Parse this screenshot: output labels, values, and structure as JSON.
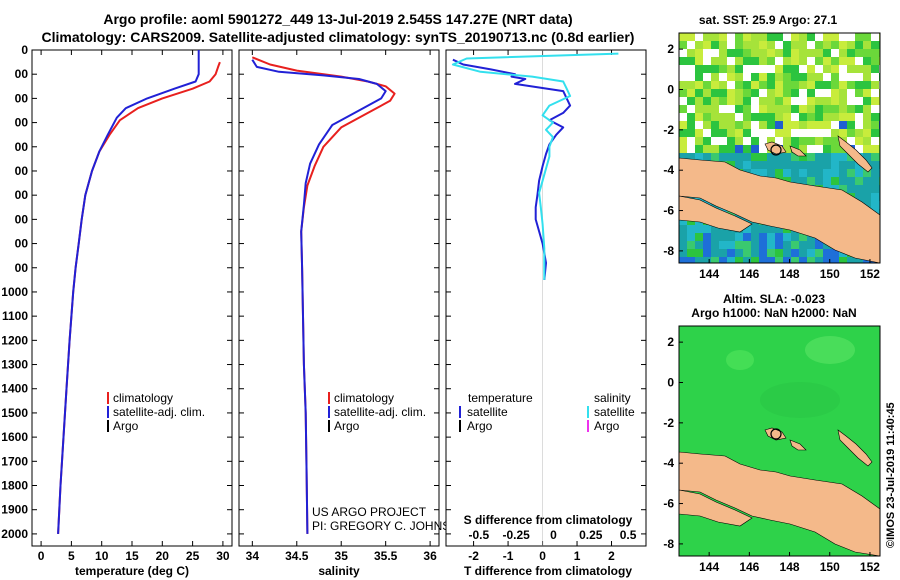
{
  "header": {
    "line1": "Argo profile: aoml 5901272_449 13-Jul-2019 2.545S 147.27E (NRT data)",
    "line2": "Climatology: CARS2009. Satellite-adjusted climatology: synTS_20190713.nc (0.8d earlier)"
  },
  "colors": {
    "climatology": "#e8201e",
    "satellite": "#2121d6",
    "argo": "#000000",
    "sat_salinity": "#33e0ee",
    "argo_salinity": "#ee33ee",
    "land": "#f4b98a",
    "ocean_green": "#2dc83a"
  },
  "chart_data": [
    {
      "type": "line",
      "title": "",
      "xlabel": "temperature (deg C)",
      "ylabel": "",
      "xlim": [
        -1.5,
        31.5
      ],
      "ylim": [
        2050,
        0
      ],
      "y_inverted": true,
      "xticks": [
        0,
        5,
        10,
        15,
        20,
        25,
        30
      ],
      "xticklabels": [
        "0",
        "5",
        "10",
        "15",
        "20",
        "25",
        "30"
      ],
      "depth_ticks": [
        0,
        100,
        200,
        300,
        400,
        500,
        600,
        700,
        800,
        900,
        1000,
        1100,
        1200,
        1300,
        1400,
        1500,
        1600,
        1700,
        1800,
        1900,
        2000
      ],
      "depth_ticklabels": [
        "0",
        "00",
        "00",
        "00",
        "00",
        "00",
        "00",
        "00",
        "00",
        "00",
        "1000",
        "1100",
        "1200",
        "1300",
        "1400",
        "1500",
        "1600",
        "1700",
        "1800",
        "1900",
        "2000"
      ],
      "legend": [
        "climatology",
        "satellite-adj. clim.",
        "Argo"
      ],
      "series": [
        {
          "name": "climatology",
          "color": "#e8201e",
          "x": [
            29.5,
            29.2,
            28.8,
            27.8,
            25.0,
            20.0,
            16.0,
            13.0,
            11.3,
            9.6,
            8.4,
            7.3,
            6.7,
            6.2,
            5.7,
            5.3,
            4.7,
            4.2,
            3.7,
            3.2,
            2.8
          ],
          "y": [
            50,
            70,
            100,
            130,
            160,
            200,
            240,
            290,
            350,
            420,
            500,
            600,
            700,
            800,
            900,
            1000,
            1200,
            1400,
            1600,
            1800,
            2000
          ]
        },
        {
          "name": "satellite-adj. clim.",
          "color": "#2121d6",
          "x": [
            26.0,
            26.0,
            26.0,
            25.5,
            22.0,
            17.5,
            14.0,
            12.5,
            11.0,
            9.6,
            8.4,
            7.3,
            6.7,
            6.2,
            5.7,
            5.3,
            4.7,
            4.2,
            3.7,
            3.2,
            2.8
          ],
          "y": [
            0,
            50,
            100,
            130,
            160,
            200,
            240,
            280,
            350,
            420,
            500,
            600,
            700,
            800,
            900,
            1000,
            1200,
            1400,
            1600,
            1800,
            2000
          ]
        }
      ]
    },
    {
      "type": "line",
      "xlabel": "salinity",
      "xlim": [
        33.85,
        36.1
      ],
      "ylim": [
        2050,
        0
      ],
      "y_inverted": true,
      "xticks": [
        34,
        34.5,
        35,
        35.5,
        36
      ],
      "xticklabels": [
        "34",
        "34.5",
        "35",
        "35.5",
        "36"
      ],
      "legend": [
        "climatology",
        "satellite-adj. clim.",
        "Argo"
      ],
      "annotations": [
        "US ARGO PROJECT",
        "PI: GREGORY C. JOHNSON"
      ],
      "series": [
        {
          "name": "climatology",
          "color": "#e8201e",
          "x": [
            34.0,
            34.2,
            34.5,
            35.0,
            35.3,
            35.5,
            35.6,
            35.55,
            35.3,
            35.0,
            34.8,
            34.7,
            34.62,
            34.58,
            34.55,
            34.56,
            34.57,
            34.58,
            34.6,
            34.61,
            34.62
          ],
          "y": [
            30,
            60,
            85,
            110,
            130,
            150,
            180,
            210,
            260,
            320,
            400,
            480,
            560,
            650,
            750,
            900,
            1100,
            1300,
            1500,
            1750,
            2000
          ]
        },
        {
          "name": "satellite-adj. clim.",
          "color": "#2121d6",
          "x": [
            34.0,
            34.05,
            34.3,
            34.8,
            35.2,
            35.4,
            35.5,
            35.45,
            35.2,
            34.9,
            34.75,
            34.65,
            34.6,
            34.58,
            34.55,
            34.56,
            34.57,
            34.58,
            34.6,
            34.61,
            34.62
          ],
          "y": [
            40,
            70,
            90,
            105,
            120,
            140,
            170,
            200,
            250,
            310,
            390,
            470,
            550,
            640,
            750,
            900,
            1100,
            1300,
            1500,
            1750,
            2000
          ]
        }
      ]
    },
    {
      "type": "line",
      "xlabel": "T difference from climatology",
      "xlabel_top": "S difference from climatology",
      "xlim": [
        -2.8,
        3.0
      ],
      "ylim": [
        2050,
        0
      ],
      "y_inverted": true,
      "xticks": [
        -2,
        -1,
        0,
        1,
        2
      ],
      "xticklabels": [
        "-2",
        "-1",
        "0",
        "1",
        "2"
      ],
      "xticks_top": [
        -0.5,
        -0.25,
        0,
        0.25,
        0.5
      ],
      "xticklabels_top": [
        "-0.5",
        "-0.25",
        "0",
        "0.25",
        "0.5"
      ],
      "legend_left_title": "temperature",
      "legend_right_title": "salinity",
      "legend_left": [
        "satellite",
        "Argo"
      ],
      "legend_right": [
        "satellite",
        "Argo"
      ],
      "series": [
        {
          "name": "temperature satellite",
          "color": "#2121d6",
          "x": [
            -2.6,
            -2.3,
            -1.5,
            -0.8,
            -0.9,
            -0.5,
            -0.8,
            0.6,
            0.7,
            0.8,
            0.6,
            0.2,
            0.6,
            0.4,
            0.2,
            0.1,
            0.0,
            -0.1,
            -0.15,
            -0.2,
            -0.2,
            0.0,
            0.1,
            0.05
          ],
          "y": [
            40,
            60,
            80,
            100,
            110,
            120,
            140,
            170,
            200,
            230,
            260,
            290,
            320,
            350,
            390,
            430,
            480,
            540,
            600,
            650,
            700,
            800,
            880,
            950
          ]
        },
        {
          "name": "salinity satellite",
          "color": "#33e0ee",
          "x": [
            2.2,
            -2.2,
            -2.6,
            -1.8,
            -0.3,
            0.6,
            0.7,
            0.8,
            0.2,
            0.0,
            0.3,
            0.1,
            0.3,
            0.2,
            0.2,
            0.1,
            0.0,
            -0.1,
            -0.05,
            0.0,
            0.05,
            0.05
          ],
          "y": [
            15,
            35,
            60,
            90,
            110,
            130,
            160,
            190,
            230,
            270,
            300,
            330,
            360,
            400,
            440,
            490,
            540,
            590,
            650,
            720,
            820,
            950
          ]
        }
      ]
    },
    {
      "type": "heatmap",
      "title": "sat. SST: 25.9 Argo: 27.1",
      "xlim": [
        142.5,
        152.5
      ],
      "ylim": [
        -8.6,
        2.8
      ],
      "xticks": [
        144,
        146,
        148,
        150,
        152
      ],
      "xticklabels": [
        "144",
        "146",
        "148",
        "150",
        "152"
      ],
      "yticks": [
        2,
        0,
        -2,
        -4,
        -6,
        -8
      ],
      "yticklabels": [
        "2",
        "0",
        "-2",
        "-4",
        "-6",
        "-8"
      ],
      "argo_position": {
        "lon": 147.27,
        "lat": -2.545
      }
    },
    {
      "type": "heatmap",
      "title_line1": "Altim. SLA: -0.023",
      "title_line2": "Argo h1000: NaN h2000: NaN",
      "xlim": [
        142.5,
        152.5
      ],
      "ylim": [
        -8.6,
        2.8
      ],
      "xticks": [
        144,
        146,
        148,
        150,
        152
      ],
      "xticklabels": [
        "144",
        "146",
        "148",
        "150",
        "152"
      ],
      "yticks": [
        2,
        0,
        -2,
        -4,
        -6,
        -8
      ],
      "yticklabels": [
        "2",
        "0",
        "-2",
        "-4",
        "-6",
        "-8"
      ],
      "argo_position": {
        "lon": 147.27,
        "lat": -2.545
      }
    }
  ],
  "sidebar": {
    "credit": "©IMOS 23-Jul-2019 11:40:45"
  }
}
